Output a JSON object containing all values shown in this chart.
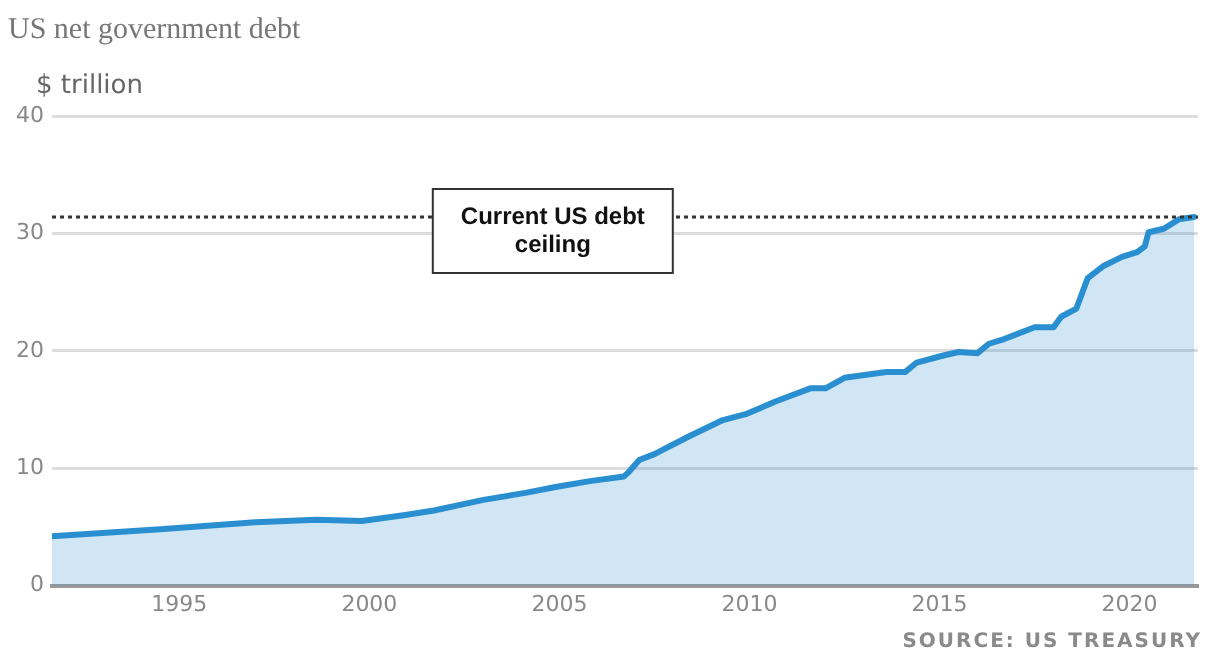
{
  "chart_data": {
    "type": "area",
    "title": "US net government debt",
    "ylabel": "$ trillion",
    "annotations": [
      "SOURCE: US TREASURY"
    ],
    "series": [
      {
        "color": "#2a8fd0",
        "x": [
          1991.65,
          1994.5,
          1997.0,
          1998.6,
          1999.8,
          2000.9,
          2001.7,
          2003.0,
          2004.1,
          2004.9,
          2005.8,
          2006.7,
          2006.8,
          2007.1,
          2007.5,
          2008.4,
          2009.3,
          2009.9,
          2010.7,
          2011.6,
          2012.0,
          2012.5,
          2013.6,
          2014.1,
          2014.4,
          2015.1,
          2015.5,
          2016.0,
          2016.3,
          2016.7,
          2017.5,
          2018.0,
          2018.2,
          2018.6,
          2018.9,
          2019.3,
          2019.8,
          2020.2,
          2020.4,
          2020.5,
          2020.9,
          2021.3,
          2021.7
        ],
        "values": [
          4.2,
          4.8,
          5.4,
          5.6,
          5.5,
          6.0,
          6.4,
          7.3,
          7.9,
          8.4,
          8.9,
          9.3,
          9.6,
          10.7,
          11.2,
          12.7,
          14.1,
          14.6,
          15.7,
          16.8,
          16.8,
          17.7,
          18.2,
          18.2,
          19.0,
          19.6,
          19.9,
          19.8,
          20.6,
          21.0,
          22.0,
          22.0,
          22.9,
          23.6,
          26.2,
          27.2,
          28.0,
          28.4,
          28.9,
          30.1,
          30.4,
          31.2,
          31.4
        ]
      }
    ],
    "xlim": [
      1991.65,
      2021.8
    ],
    "xticks": [
      1995,
      2000,
      2005,
      2010,
      2015,
      2020
    ],
    "ylim": [
      0,
      40
    ],
    "yticks": [
      0,
      10,
      20,
      30,
      40
    ],
    "ref_lines": [
      {
        "axis": "y",
        "value": 31.4,
        "label": "Current US debt ceiling",
        "color": "#333333",
        "line_style": "dotted"
      }
    ],
    "grid": "y",
    "legend": false,
    "marker": "none",
    "line_style": "solid"
  }
}
